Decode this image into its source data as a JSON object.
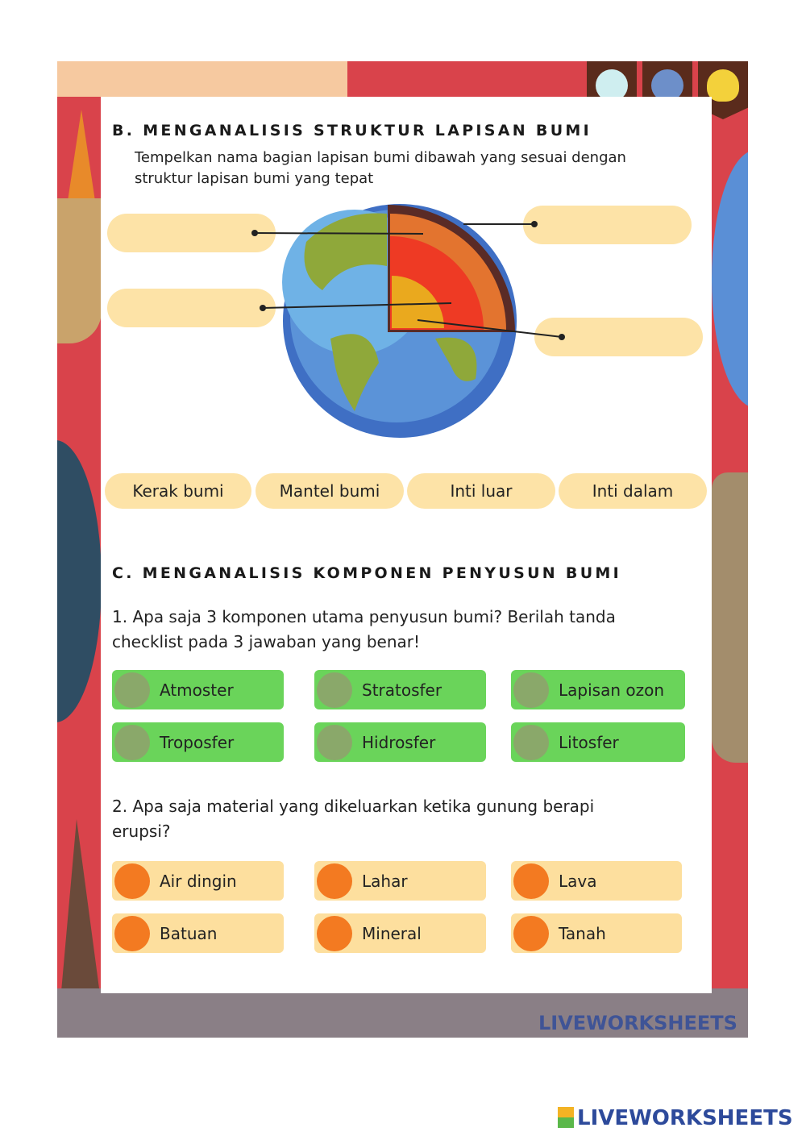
{
  "section_b": {
    "title": "B. MENGANALISIS STRUKTUR LAPISAN BUMI",
    "instruction_line1": "Tempelkan nama bagian lapisan bumi dibawah yang sesuai dengan",
    "instruction_line2": "struktur lapisan bumi yang tepat"
  },
  "answers": [
    "Kerak bumi",
    "Mantel bumi",
    "Inti luar",
    "Inti dalam"
  ],
  "section_c": {
    "title": "C. MENGANALISIS KOMPONEN PENYUSUN BUMI",
    "q1_line1": "1. Apa saja 3 komponen utama penyusun bumi? Berilah tanda",
    "q1_line2": "checklist pada 3 jawaban yang benar!",
    "q1_options": [
      "Atmoster",
      "Stratosfer",
      "Lapisan ozon",
      "Troposfer",
      "Hidrosfer",
      "Litosfer"
    ],
    "q2_line1": "2. Apa saja material yang dikeluarkan ketika gunung berapi",
    "q2_line2": "erupsi?",
    "q2_options": [
      "Air dingin",
      "Lahar",
      "Lava",
      "Batuan",
      "Mineral",
      "Tanah"
    ]
  },
  "watermark": "LIVEWORKSHEETS",
  "colors": {
    "frame": "#d9434b",
    "label_box": "#fde3a7",
    "green_option": "#6ad45a",
    "orange_option": "#fddf9e",
    "orange_dot": "#f37a21"
  }
}
